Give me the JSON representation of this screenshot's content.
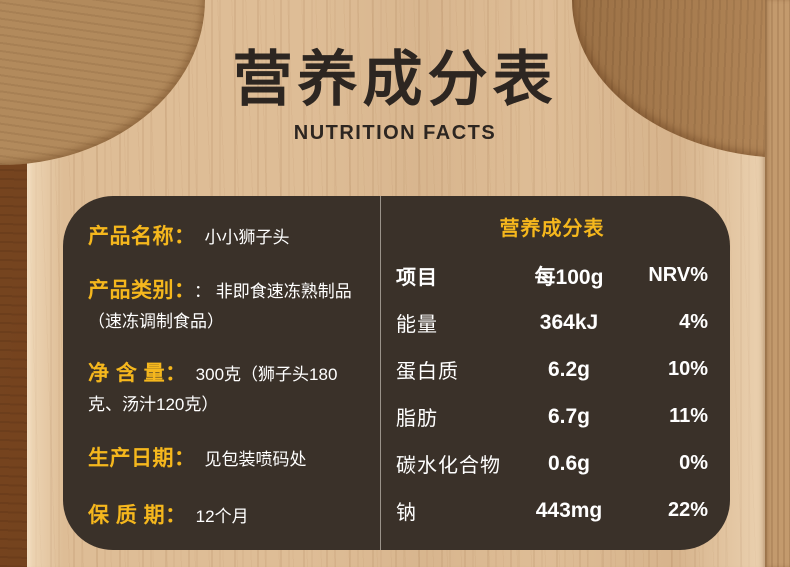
{
  "header": {
    "title": "营养成分表",
    "subtitle": "NUTRITION FACTS"
  },
  "product_info": {
    "rows": [
      {
        "label": "产品名称：",
        "value": "小小狮子头"
      },
      {
        "label": "产品类别：",
        "value": "： 非即食速冻熟制品（速冻调制食品）"
      },
      {
        "label": "净 含 量：",
        "value": "300克（狮子头180克、汤汁120克）"
      },
      {
        "label": "生产日期：",
        "value": "见包装喷码处"
      },
      {
        "label": "保 质 期：",
        "value": "12个月"
      }
    ]
  },
  "nutrition_table": {
    "title": "营养成分表",
    "columns": [
      "项目",
      "每100g",
      "NRV%"
    ],
    "rows": [
      {
        "item": "能量",
        "per_100g": "364kJ",
        "nrv": "4%"
      },
      {
        "item": "蛋白质",
        "per_100g": "6.2g",
        "nrv": "10%"
      },
      {
        "item": "脂肪",
        "per_100g": "6.7g",
        "nrv": "11%"
      },
      {
        "item": "碳水化合物",
        "per_100g": "0.6g",
        "nrv": "0%"
      },
      {
        "item": "钠",
        "per_100g": "443mg",
        "nrv": "22%"
      }
    ]
  },
  "colors": {
    "accent_yellow": "#F5B71D",
    "panel_brown": "#3A3129",
    "heading_dark": "#2D2621",
    "text_white": "#FFFFFF"
  }
}
